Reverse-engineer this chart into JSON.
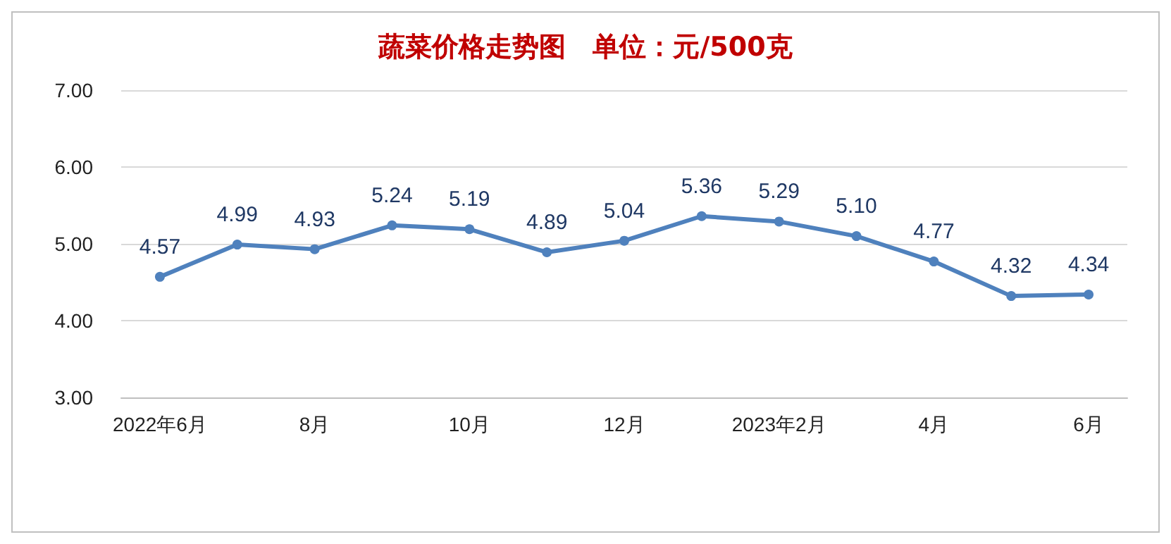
{
  "chart_data": {
    "type": "line",
    "title": "蔬菜价格走势图　单位：元/500克",
    "categories": [
      "2022年6月",
      null,
      "8月",
      null,
      "10月",
      null,
      "12月",
      null,
      "2023年2月",
      null,
      "4月",
      null,
      "6月"
    ],
    "series": [
      {
        "color": "#4f81bd",
        "values": [
          4.57,
          4.99,
          4.93,
          5.24,
          5.19,
          4.89,
          5.04,
          5.36,
          5.29,
          5.1,
          4.77,
          4.32,
          4.34
        ],
        "value_labels": [
          "4.57",
          "4.99",
          "4.93",
          "5.24",
          "5.19",
          "4.89",
          "5.04",
          "5.36",
          "5.29",
          "5.10",
          "4.77",
          "4.32",
          "4.34"
        ]
      }
    ],
    "ylim": [
      3,
      7
    ],
    "yticks": [
      {
        "value": 3,
        "label": "3.00"
      },
      {
        "value": 4,
        "label": "4.00"
      },
      {
        "value": 5,
        "label": "5.00"
      },
      {
        "value": 6,
        "label": "6.00"
      },
      {
        "value": 7,
        "label": "7.00"
      }
    ],
    "grid": "y",
    "marker": "circle",
    "line_style": "solid"
  }
}
